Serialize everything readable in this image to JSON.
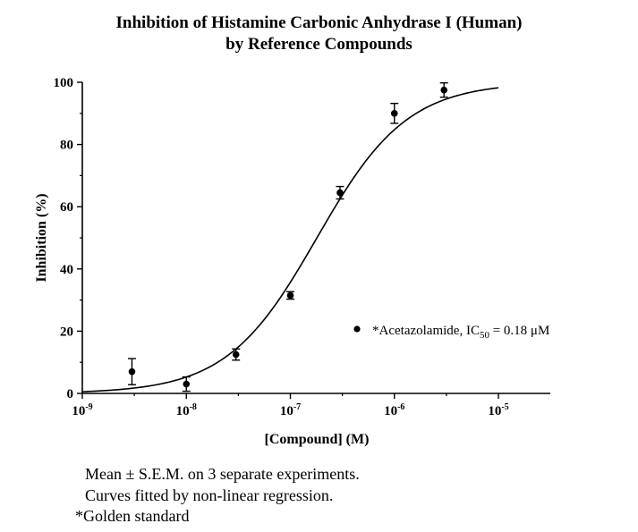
{
  "chart_data": {
    "type": "scatter",
    "title": "Inhibition of Histamine Carbonic Anhydrase I (Human)",
    "subtitle": "by Reference Compounds",
    "xlabel": "[Compound] (M)",
    "ylabel": "Inhibition (%)",
    "x_scale": "log",
    "xlim": [
      1e-09,
      1e-05
    ],
    "ylim": [
      0,
      100
    ],
    "x_ticks": [
      1e-09,
      1e-08,
      1e-07,
      1e-06,
      1e-05
    ],
    "x_tick_labels": [
      {
        "base": "10",
        "exp": "-9"
      },
      {
        "base": "10",
        "exp": "-8"
      },
      {
        "base": "10",
        "exp": "-7"
      },
      {
        "base": "10",
        "exp": "-6"
      },
      {
        "base": "10",
        "exp": "-5"
      }
    ],
    "y_ticks": [
      "0",
      "20",
      "40",
      "60",
      "80",
      "100"
    ],
    "grid": false,
    "series": [
      {
        "name": "Acetazolamide",
        "x": [
          3e-09,
          1e-08,
          3e-08,
          1e-07,
          3e-07,
          1e-06,
          3e-06
        ],
        "y": [
          7,
          3,
          12.5,
          31.5,
          64.5,
          90,
          97.5
        ],
        "error": [
          4.2,
          2.3,
          1.8,
          1.2,
          2,
          3.2,
          2.3
        ],
        "fit": {
          "model": "sigmoidal",
          "ic50": 1.8e-07,
          "hill": 1,
          "bottom": 0,
          "top": 100,
          "x_range": [
            1e-09,
            1e-05
          ]
        }
      }
    ],
    "legend": {
      "position": "right",
      "prefix": "*Acetazolamide, IC",
      "subscript": "50",
      "suffix": " = 0.18 μM"
    }
  },
  "notes": [
    "Mean ± S.E.M. on 3 separate experiments.",
    "Curves fitted by non-linear regression.",
    "*Golden standard"
  ]
}
